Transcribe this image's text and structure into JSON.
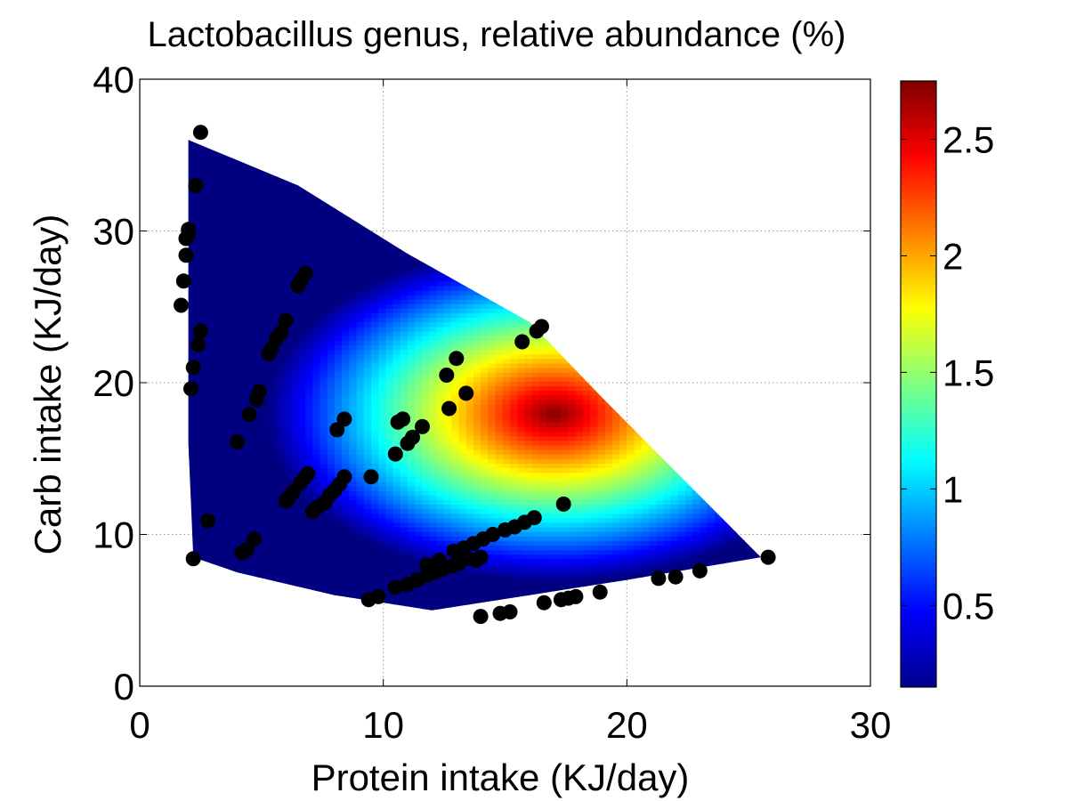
{
  "chart_data": {
    "type": "scatter",
    "subtype": "scatter over colour-mapped surface",
    "title": "Lactobacillus genus, relative abundance (%)",
    "xlabel": "Protein intake (KJ/day)",
    "ylabel": "Carb intake (KJ/day)",
    "xlim": [
      0,
      30
    ],
    "ylim": [
      0,
      40
    ],
    "xticks": [
      "0",
      "10",
      "20",
      "30"
    ],
    "yticks": [
      "0",
      "10",
      "20",
      "30",
      "40"
    ],
    "grid": true,
    "colormap": "jet",
    "colorbar": {
      "range": [
        0.15,
        2.75
      ],
      "ticks": [
        "0.5",
        "1",
        "1.5",
        "2",
        "2.5"
      ]
    },
    "surface": {
      "boundary": [
        [
          2.0,
          36.0
        ],
        [
          6.5,
          33.0
        ],
        [
          11.0,
          28.5
        ],
        [
          16.0,
          24.0
        ],
        [
          19.0,
          19.0
        ],
        [
          25.5,
          8.5
        ],
        [
          20.0,
          7.0
        ],
        [
          16.0,
          6.0
        ],
        [
          12.0,
          5.0
        ],
        [
          8.0,
          6.0
        ],
        [
          4.0,
          7.5
        ],
        [
          2.2,
          8.5
        ],
        [
          2.0,
          16.0
        ]
      ],
      "peak": [
        17.0,
        18.0
      ]
    },
    "points": [
      [
        2.5,
        36.5
      ],
      [
        2.3,
        33.0
      ],
      [
        2.0,
        30.1
      ],
      [
        2.0,
        29.8
      ],
      [
        1.9,
        29.5
      ],
      [
        1.9,
        28.4
      ],
      [
        1.8,
        26.7
      ],
      [
        1.7,
        25.1
      ],
      [
        2.5,
        23.4
      ],
      [
        2.4,
        22.5
      ],
      [
        2.2,
        21.0
      ],
      [
        2.1,
        19.6
      ],
      [
        2.2,
        8.4
      ],
      [
        2.8,
        10.9
      ],
      [
        4.2,
        8.8
      ],
      [
        4.4,
        9.0
      ],
      [
        4.7,
        9.7
      ],
      [
        4.0,
        16.1
      ],
      [
        4.5,
        17.9
      ],
      [
        4.8,
        18.9
      ],
      [
        4.9,
        19.4
      ],
      [
        5.3,
        21.9
      ],
      [
        5.4,
        22.2
      ],
      [
        5.6,
        22.9
      ],
      [
        5.8,
        23.3
      ],
      [
        6.0,
        24.1
      ],
      [
        6.5,
        26.4
      ],
      [
        6.6,
        26.7
      ],
      [
        6.8,
        27.2
      ],
      [
        6.0,
        12.2
      ],
      [
        6.1,
        12.4
      ],
      [
        6.3,
        12.8
      ],
      [
        6.6,
        13.4
      ],
      [
        6.8,
        13.8
      ],
      [
        6.9,
        14.0
      ],
      [
        7.1,
        11.5
      ],
      [
        7.3,
        11.8
      ],
      [
        7.6,
        12.1
      ],
      [
        7.8,
        12.6
      ],
      [
        8.0,
        12.9
      ],
      [
        8.2,
        13.3
      ],
      [
        8.4,
        13.8
      ],
      [
        8.1,
        16.9
      ],
      [
        8.4,
        17.6
      ],
      [
        9.5,
        13.8
      ],
      [
        9.4,
        5.7
      ],
      [
        9.8,
        5.9
      ],
      [
        10.5,
        15.3
      ],
      [
        10.6,
        17.4
      ],
      [
        10.8,
        17.6
      ],
      [
        11.0,
        16.0
      ],
      [
        11.2,
        16.4
      ],
      [
        11.6,
        17.1
      ],
      [
        10.5,
        6.5
      ],
      [
        11.0,
        6.7
      ],
      [
        11.4,
        7.0
      ],
      [
        11.8,
        7.3
      ],
      [
        12.1,
        7.5
      ],
      [
        12.4,
        7.7
      ],
      [
        12.8,
        7.9
      ],
      [
        13.1,
        8.1
      ],
      [
        13.5,
        8.4
      ],
      [
        13.8,
        8.3
      ],
      [
        14.0,
        8.5
      ],
      [
        11.8,
        8.0
      ],
      [
        12.3,
        8.3
      ],
      [
        12.9,
        8.9
      ],
      [
        13.3,
        9.1
      ],
      [
        13.7,
        9.4
      ],
      [
        14.1,
        9.7
      ],
      [
        14.5,
        10.0
      ],
      [
        15.0,
        10.3
      ],
      [
        15.4,
        10.5
      ],
      [
        15.8,
        10.8
      ],
      [
        16.2,
        11.1
      ],
      [
        12.6,
        20.5
      ],
      [
        12.7,
        18.3
      ],
      [
        13.0,
        21.6
      ],
      [
        13.4,
        19.3
      ],
      [
        15.7,
        22.7
      ],
      [
        16.3,
        23.4
      ],
      [
        16.5,
        23.7
      ],
      [
        17.4,
        12.0
      ],
      [
        14.0,
        4.6
      ],
      [
        14.8,
        4.8
      ],
      [
        15.2,
        4.9
      ],
      [
        16.6,
        5.5
      ],
      [
        17.3,
        5.7
      ],
      [
        17.6,
        5.8
      ],
      [
        17.9,
        5.9
      ],
      [
        18.9,
        6.2
      ],
      [
        21.3,
        7.1
      ],
      [
        22.0,
        7.2
      ],
      [
        23.0,
        7.6
      ],
      [
        25.8,
        8.5
      ]
    ]
  }
}
